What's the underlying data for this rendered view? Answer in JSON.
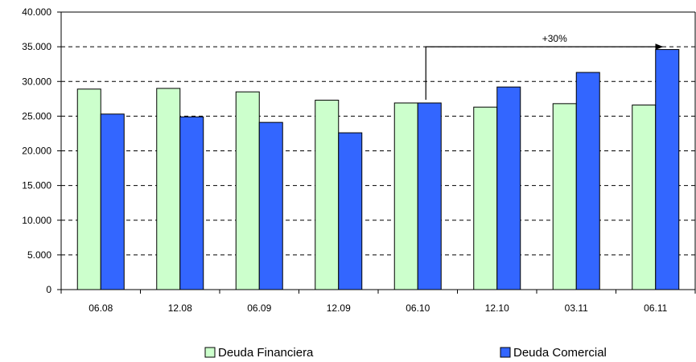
{
  "chart_data": {
    "type": "bar",
    "categories": [
      "06.08",
      "12.08",
      "06.09",
      "12.09",
      "06.10",
      "12.10",
      "03.11",
      "06.11"
    ],
    "series": [
      {
        "name": "Deuda Financiera",
        "color": "#ccffcc",
        "values": [
          28900,
          29000,
          28500,
          27300,
          26900,
          26300,
          26800,
          26600
        ]
      },
      {
        "name": "Deuda Comercial",
        "color": "#3366ff",
        "values": [
          25300,
          24900,
          24100,
          22600,
          26900,
          29200,
          31300,
          34600
        ]
      }
    ],
    "ylim": [
      0,
      40000
    ],
    "y_ticks": [
      0,
      5000,
      10000,
      15000,
      20000,
      25000,
      30000,
      35000,
      40000
    ],
    "y_tick_labels": [
      "0",
      "5.000",
      "10.000",
      "15.000",
      "20.000",
      "25.000",
      "30.000",
      "35.000",
      "40.000"
    ],
    "grid": "horizontal-dashed",
    "legend_position": "bottom",
    "xlabel": "",
    "ylabel": "",
    "annotation": {
      "text": "+30%",
      "from_category": "06.10",
      "to_category": "06.11",
      "series": "Deuda Comercial"
    }
  }
}
